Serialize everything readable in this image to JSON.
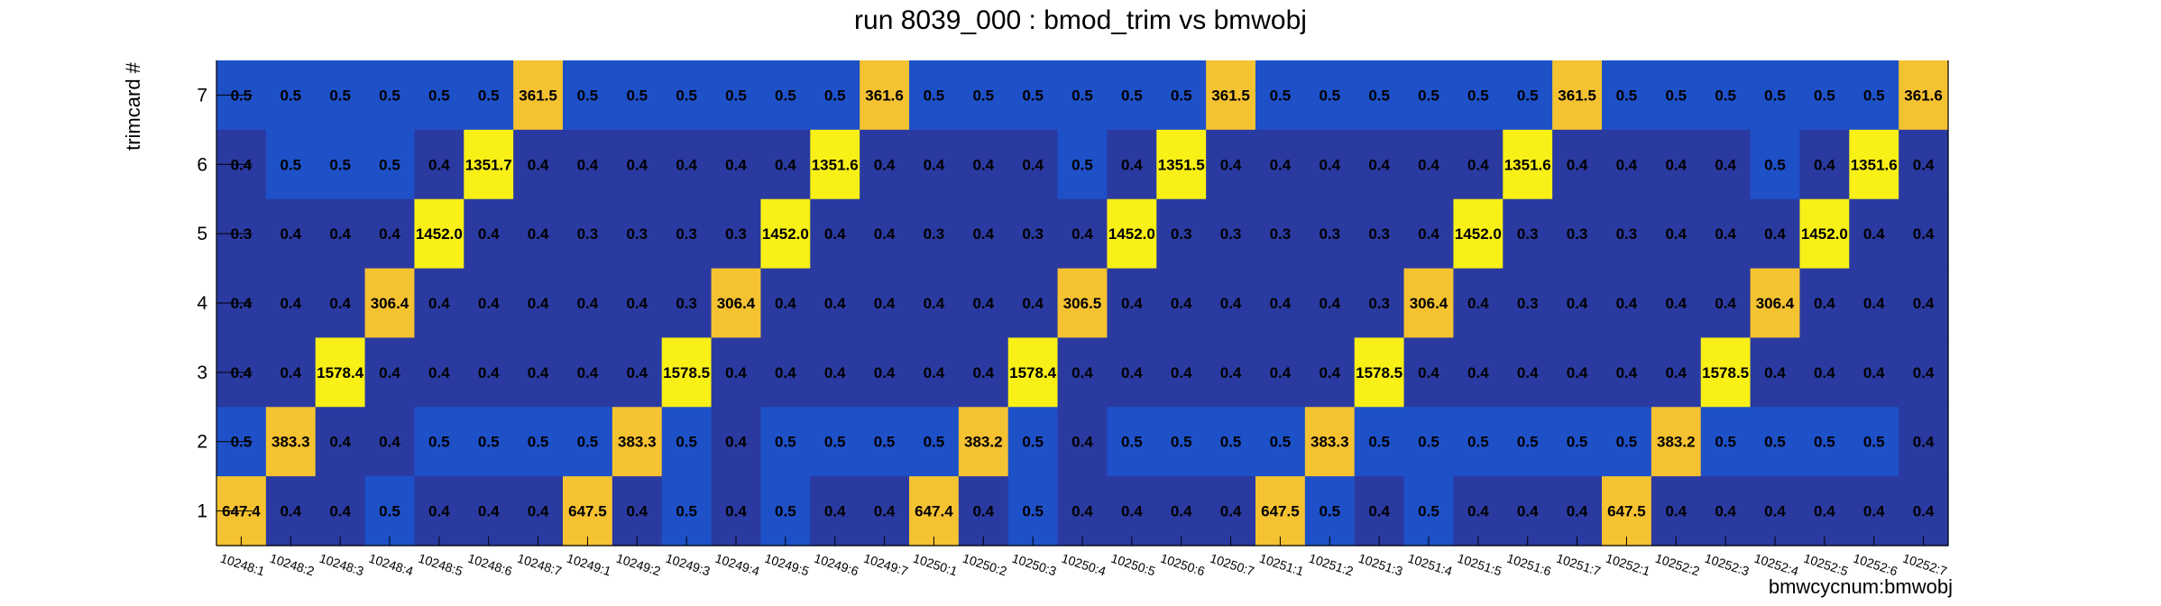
{
  "chart_data": {
    "type": "heatmap",
    "title": "run 8039_000 : bmod_trim vs bmwobj",
    "xlabel": "bmwcycnum:bmwobj",
    "ylabel": "trimcard #",
    "x_categories": [
      "10248:1",
      "10248:2",
      "10248:3",
      "10248:4",
      "10248:5",
      "10248:6",
      "10248:7",
      "10249:1",
      "10249:2",
      "10249:3",
      "10249:4",
      "10249:5",
      "10249:6",
      "10249:7",
      "10250:1",
      "10250:2",
      "10250:3",
      "10250:4",
      "10250:5",
      "10250:6",
      "10250:7",
      "10251:1",
      "10251:2",
      "10251:3",
      "10251:4",
      "10251:5",
      "10251:6",
      "10251:7",
      "10252:1",
      "10252:2",
      "10252:3",
      "10252:4",
      "10252:5",
      "10252:6",
      "10252:7"
    ],
    "y_categories": [
      "1",
      "2",
      "3",
      "4",
      "5",
      "6",
      "7"
    ],
    "rows": [
      {
        "y": "7",
        "values": [
          0.5,
          0.5,
          0.5,
          0.5,
          0.5,
          0.5,
          361.5,
          0.5,
          0.5,
          0.5,
          0.5,
          0.5,
          0.5,
          361.6,
          0.5,
          0.5,
          0.5,
          0.5,
          0.5,
          0.5,
          361.5,
          0.5,
          0.5,
          0.5,
          0.5,
          0.5,
          0.5,
          361.5,
          0.5,
          0.5,
          0.5,
          0.5,
          0.5,
          0.5,
          361.6
        ]
      },
      {
        "y": "6",
        "values": [
          0.4,
          0.5,
          0.5,
          0.5,
          0.4,
          1351.7,
          0.4,
          0.4,
          0.4,
          0.4,
          0.4,
          0.4,
          1351.6,
          0.4,
          0.4,
          0.4,
          0.4,
          0.5,
          0.4,
          1351.5,
          0.4,
          0.4,
          0.4,
          0.4,
          0.4,
          0.4,
          1351.6,
          0.4,
          0.4,
          0.4,
          0.4,
          0.5,
          0.4,
          1351.6,
          0.4
        ]
      },
      {
        "y": "5",
        "values": [
          0.3,
          0.4,
          0.4,
          0.4,
          1452.0,
          0.4,
          0.4,
          0.3,
          0.3,
          0.3,
          0.3,
          1452.0,
          0.4,
          0.4,
          0.3,
          0.4,
          0.3,
          0.4,
          1452.0,
          0.3,
          0.3,
          0.3,
          0.3,
          0.3,
          0.4,
          1452.0,
          0.3,
          0.3,
          0.3,
          0.4,
          0.4,
          0.4,
          1452.0,
          0.4,
          0.4
        ]
      },
      {
        "y": "4",
        "values": [
          0.4,
          0.4,
          0.4,
          306.4,
          0.4,
          0.4,
          0.4,
          0.4,
          0.4,
          0.3,
          306.4,
          0.4,
          0.4,
          0.4,
          0.4,
          0.4,
          0.4,
          306.5,
          0.4,
          0.4,
          0.4,
          0.4,
          0.4,
          0.3,
          306.4,
          0.4,
          0.3,
          0.4,
          0.4,
          0.4,
          0.4,
          306.4,
          0.4,
          0.4,
          0.4
        ]
      },
      {
        "y": "3",
        "values": [
          0.4,
          0.4,
          1578.4,
          0.4,
          0.4,
          0.4,
          0.4,
          0.4,
          0.4,
          1578.5,
          0.4,
          0.4,
          0.4,
          0.4,
          0.4,
          0.4,
          1578.4,
          0.4,
          0.4,
          0.4,
          0.4,
          0.4,
          0.4,
          1578.5,
          0.4,
          0.4,
          0.4,
          0.4,
          0.4,
          0.4,
          1578.5,
          0.4,
          0.4,
          0.4,
          0.4
        ]
      },
      {
        "y": "2",
        "values": [
          0.5,
          383.3,
          0.4,
          0.4,
          0.5,
          0.5,
          0.5,
          0.5,
          383.3,
          0.5,
          0.4,
          0.5,
          0.5,
          0.5,
          0.5,
          383.2,
          0.5,
          0.4,
          0.5,
          0.5,
          0.5,
          0.5,
          383.3,
          0.5,
          0.5,
          0.5,
          0.5,
          0.5,
          0.5,
          383.2,
          0.5,
          0.5,
          0.5,
          0.5,
          0.4
        ]
      },
      {
        "y": "1",
        "values": [
          647.4,
          0.4,
          0.4,
          0.5,
          0.4,
          0.4,
          0.4,
          647.5,
          0.4,
          0.5,
          0.4,
          0.5,
          0.4,
          0.4,
          647.4,
          0.4,
          0.5,
          0.4,
          0.4,
          0.4,
          0.4,
          647.5,
          0.5,
          0.4,
          0.5,
          0.4,
          0.4,
          0.4,
          647.5,
          0.4,
          0.4,
          0.4,
          0.4,
          0.4,
          0.4
        ]
      }
    ],
    "legend": "none",
    "grid": false,
    "colors": {
      "low": "#2a3aa0",
      "mid": "#1e50c8",
      "high_a": "#f5c232",
      "high_b": "#f8f016",
      "text": "#000000",
      "background": "#ffffff"
    }
  }
}
